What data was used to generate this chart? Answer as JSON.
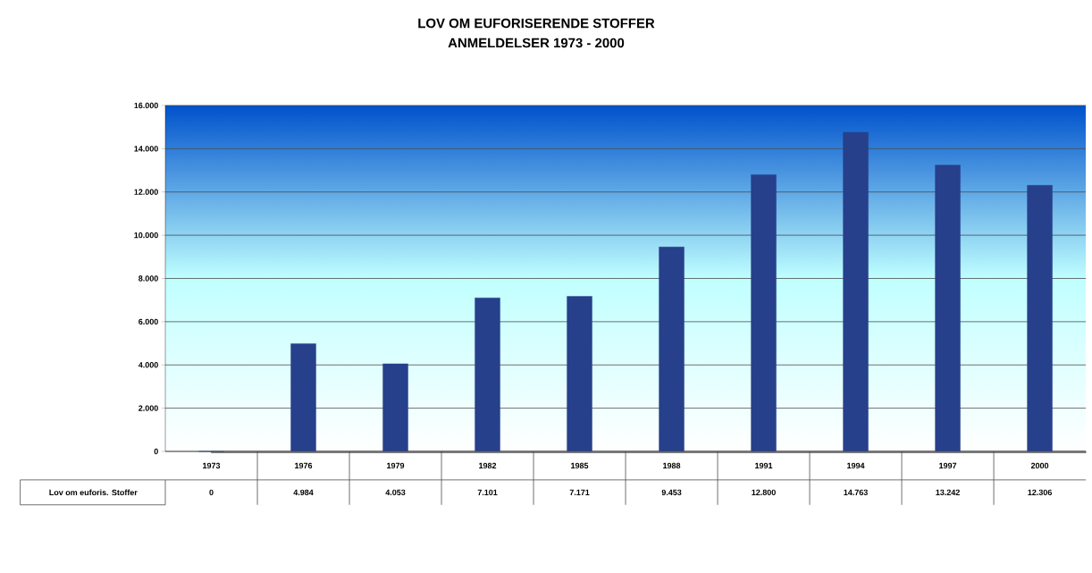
{
  "chart_data": {
    "type": "bar",
    "title": "LOV OM EUFORISERENDE STOFFER",
    "subtitle": "ANMELDELSER 1973 - 2000",
    "categories": [
      "1973",
      "1976",
      "1979",
      "1982",
      "1985",
      "1988",
      "1991",
      "1994",
      "1997",
      "2000"
    ],
    "series": [
      {
        "name": "Lov om euforis. Stoffer",
        "color": "#27408b",
        "values": [
          0,
          4984,
          4053,
          7101,
          7171,
          9453,
          12800,
          14763,
          13242,
          12306
        ],
        "value_labels": [
          "0",
          "4.984",
          "4.053",
          "7.101",
          "7.171",
          "9.453",
          "12.800",
          "14.763",
          "13.242",
          "12.306"
        ]
      }
    ],
    "ylim": [
      0,
      16000
    ],
    "yticks": [
      0,
      {
        "value": 2000,
        "label": "2.000"
      },
      {
        "value": 4000,
        "label": "4.000"
      },
      {
        "value": 6000,
        "label": "6.000"
      },
      {
        "value": 8000,
        "label": "8.000"
      },
      {
        "value": 10000,
        "label": "10.000"
      },
      {
        "value": 12000,
        "label": "12.000"
      },
      {
        "value": 14000,
        "label": "14.000"
      },
      {
        "value": 16000,
        "label": "16.000"
      }
    ],
    "grid": "y"
  }
}
